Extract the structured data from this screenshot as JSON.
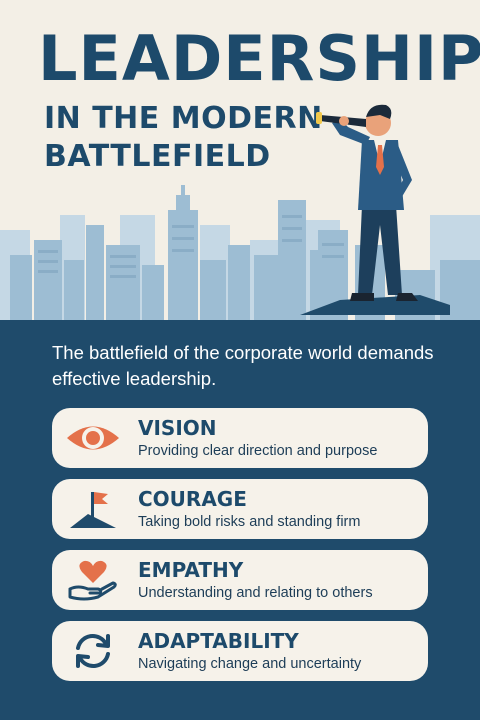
{
  "title": {
    "line1": "LEADERSHIP",
    "line2": "IN THE MODERN",
    "line3": "BATTLEFIELD"
  },
  "intro": "The battlefield of the corporate world demands effective leadership.",
  "colors": {
    "navy": "#1f4b6b",
    "cream": "#f3efe6",
    "accent": "#e4714a",
    "skyline": "#9dbdd3"
  },
  "cards": [
    {
      "title": "VISION",
      "desc": "Providing clear direction and purpose",
      "icon": "eye-icon"
    },
    {
      "title": "COURAGE",
      "desc": "Taking bold risks and standing firm",
      "icon": "flag-on-hill-icon"
    },
    {
      "title": "EMPATHY",
      "desc": "Understanding and relating to others",
      "icon": "heart-in-hand-icon"
    },
    {
      "title": "ADAPTABILITY",
      "desc": "Navigating change and uncertainty",
      "icon": "cycle-arrows-icon"
    }
  ]
}
